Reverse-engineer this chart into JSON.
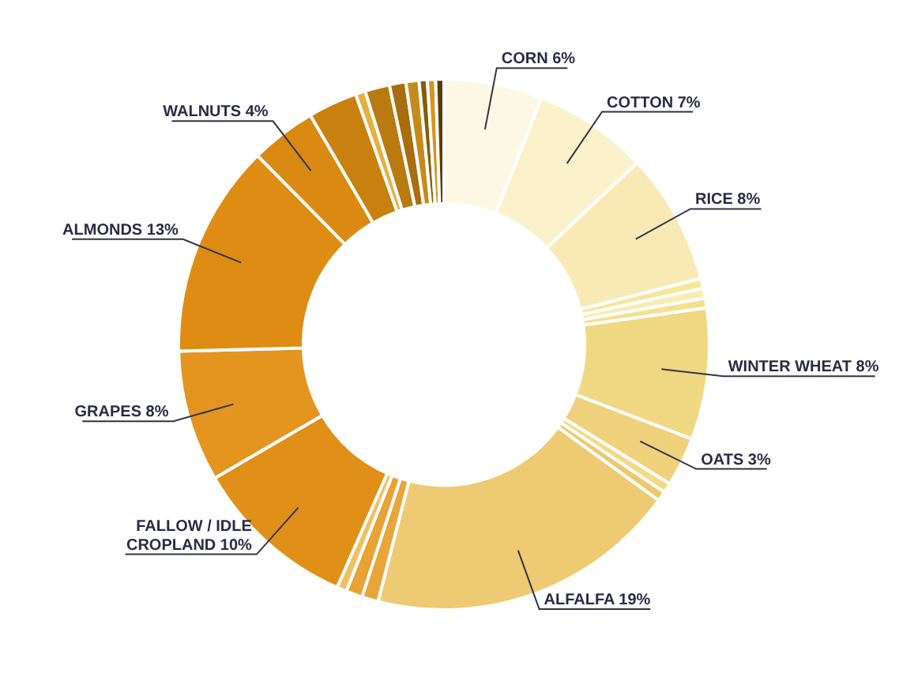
{
  "chart_data": {
    "type": "donut",
    "categories": [
      "CORN",
      "COTTON",
      "RICE",
      null,
      null,
      null,
      "WINTER WHEAT",
      "OATS",
      null,
      null,
      "ALFALFA",
      null,
      null,
      null,
      "FALLOW / IDLE CROPLAND",
      "GRAPES",
      "ALMONDS",
      "WALNUTS",
      null,
      null,
      null,
      null,
      null,
      null,
      null,
      null
    ],
    "values": [
      6,
      7,
      8,
      0.6,
      0.6,
      0.6,
      8,
      3,
      0.6,
      0.6,
      19,
      1,
      1,
      0.6,
      10,
      8,
      13,
      4,
      3,
      0.6,
      1.5,
      1,
      0.8,
      0.5,
      0.5,
      0.5
    ],
    "value_labels": [
      "6%",
      "7%",
      "8%",
      null,
      null,
      null,
      "8%",
      "3%",
      null,
      null,
      "19%",
      null,
      null,
      null,
      "10%",
      "8%",
      "13%",
      "4%",
      null,
      null,
      null,
      null,
      null,
      null,
      null,
      null
    ],
    "colors": [
      "#fdf8e4",
      "#fbf2cc",
      "#f9eab5",
      "#f7e59a",
      "#f9ecb0",
      "#f5e08e",
      "#f0d883",
      "#eed17a",
      "#f3da86",
      "#ecc96c",
      "#eecb73",
      "#e8a63a",
      "#e9a234",
      "#f0c060",
      "#e08f18",
      "#e39520",
      "#de8c14",
      "#da8a12",
      "#c8800e",
      "#e6b040",
      "#b97a10",
      "#a86d0c",
      "#c48b1c",
      "#8a5a08",
      "#d69420",
      "#5a3a06"
    ]
  }
}
